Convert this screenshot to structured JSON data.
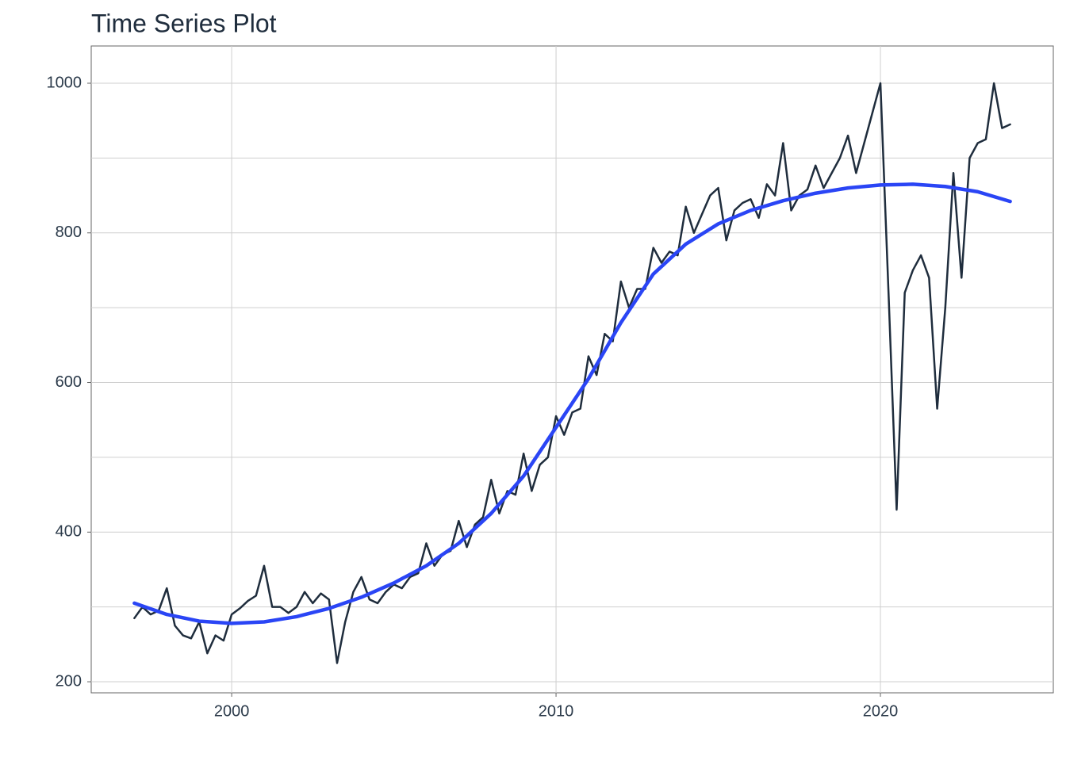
{
  "chart_data": {
    "type": "line",
    "title": "Time Series Plot",
    "xlim": [
      1995.67,
      2025.33
    ],
    "xticks": [
      2000,
      2010,
      2020
    ],
    "ylim": [
      185.2,
      1049.8
    ],
    "yticks": [
      200,
      400,
      600,
      800,
      1000
    ],
    "yminorticks": [
      300,
      500,
      700,
      900
    ],
    "grid": true,
    "series": [
      {
        "color": "#1f2d3d",
        "x": [
          1997.0,
          1997.25,
          1997.5,
          1997.75,
          1998.0,
          1998.25,
          1998.5,
          1998.75,
          1999.0,
          1999.25,
          1999.5,
          1999.75,
          2000.0,
          2000.25,
          2000.5,
          2000.75,
          2001.0,
          2001.25,
          2001.5,
          2001.75,
          2002.0,
          2002.25,
          2002.5,
          2002.75,
          2003.0,
          2003.25,
          2003.5,
          2003.75,
          2004.0,
          2004.25,
          2004.5,
          2004.75,
          2005.0,
          2005.25,
          2005.5,
          2005.75,
          2006.0,
          2006.25,
          2006.5,
          2006.75,
          2007.0,
          2007.25,
          2007.5,
          2007.75,
          2008.0,
          2008.25,
          2008.5,
          2008.75,
          2009.0,
          2009.25,
          2009.5,
          2009.75,
          2010.0,
          2010.25,
          2010.5,
          2010.75,
          2011.0,
          2011.25,
          2011.5,
          2011.75,
          2012.0,
          2012.25,
          2012.5,
          2012.75,
          2013.0,
          2013.25,
          2013.5,
          2013.75,
          2014.0,
          2014.25,
          2014.5,
          2014.75,
          2015.0,
          2015.25,
          2015.5,
          2015.75,
          2016.0,
          2016.25,
          2016.5,
          2016.75,
          2017.0,
          2017.25,
          2017.5,
          2017.75,
          2018.0,
          2018.25,
          2018.5,
          2018.75,
          2019.0,
          2019.25,
          2019.5,
          2019.75,
          2020.0,
          2020.25,
          2020.5,
          2020.75,
          2021.0,
          2021.25,
          2021.5,
          2021.75,
          2022.0,
          2022.25,
          2022.5,
          2022.75,
          2023.0,
          2023.25,
          2023.5,
          2023.75,
          2024.0
        ],
        "values": [
          285,
          300,
          290,
          295,
          325,
          275,
          262,
          258,
          280,
          238,
          262,
          255,
          290,
          298,
          308,
          315,
          355,
          300,
          300,
          292,
          300,
          320,
          305,
          318,
          310,
          225,
          280,
          320,
          340,
          310,
          305,
          320,
          330,
          325,
          340,
          345,
          385,
          355,
          370,
          375,
          415,
          380,
          410,
          420,
          470,
          425,
          455,
          450,
          505,
          455,
          490,
          500,
          555,
          530,
          560,
          565,
          635,
          610,
          665,
          655,
          735,
          700,
          725,
          725,
          780,
          760,
          775,
          770,
          835,
          800,
          825,
          850,
          860,
          790,
          830,
          840,
          845,
          820,
          865,
          850,
          920,
          830,
          850,
          858,
          890,
          860,
          880,
          900,
          930,
          880,
          920,
          960,
          1000,
          720,
          430,
          720,
          750,
          770,
          740,
          565,
          700,
          880,
          740,
          900,
          920,
          925,
          1000,
          940,
          945
        ]
      },
      {
        "color": "#2a45f5",
        "x": [
          1997,
          1998,
          1999,
          2000,
          2001,
          2002,
          2003,
          2004,
          2005,
          2006,
          2007,
          2008,
          2009,
          2010,
          2011,
          2012,
          2013,
          2014,
          2015,
          2016,
          2017,
          2018,
          2019,
          2020,
          2021,
          2022,
          2023,
          2024
        ],
        "values": [
          305,
          290,
          281,
          278,
          280,
          287,
          298,
          313,
          332,
          355,
          385,
          425,
          475,
          540,
          605,
          680,
          745,
          785,
          812,
          830,
          843,
          853,
          860,
          864,
          865,
          862,
          855,
          842
        ]
      }
    ]
  }
}
